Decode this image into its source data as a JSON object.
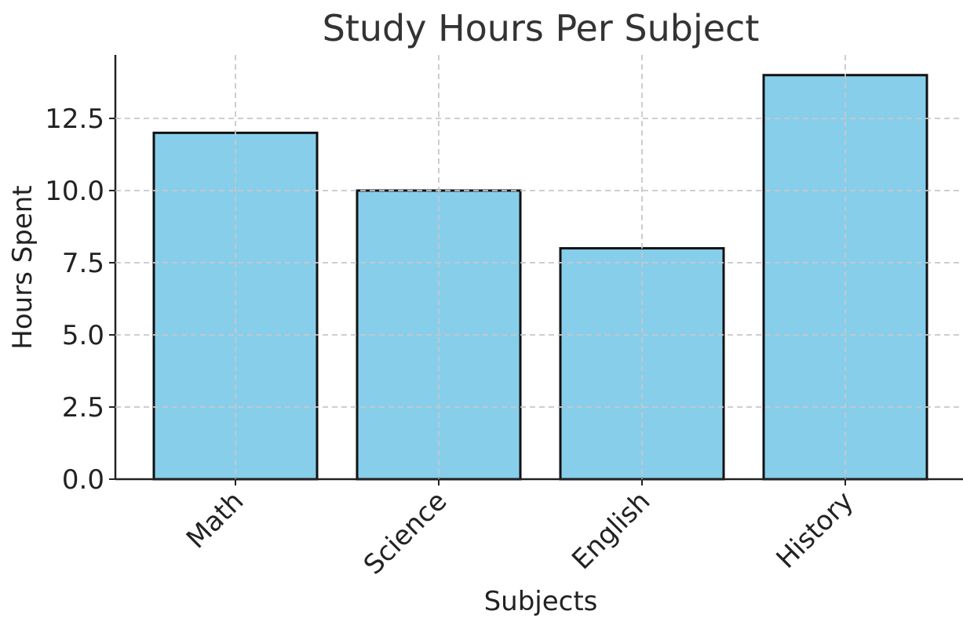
{
  "chart_data": {
    "type": "bar",
    "title": "Study Hours Per Subject",
    "xlabel": "Subjects",
    "ylabel": "Hours Spent",
    "categories": [
      "Math",
      "Science",
      "English",
      "History"
    ],
    "values": [
      12,
      10,
      8,
      14
    ],
    "ylim": [
      0,
      14.7
    ],
    "yticks": [
      0.0,
      2.5,
      5.0,
      7.5,
      10.0,
      12.5
    ],
    "ytick_labels": [
      "0.0",
      "2.5",
      "5.0",
      "7.5",
      "10.0",
      "12.5"
    ],
    "grid": true,
    "bar_color": "#87CEEB",
    "bar_edge_color": "#111111"
  }
}
